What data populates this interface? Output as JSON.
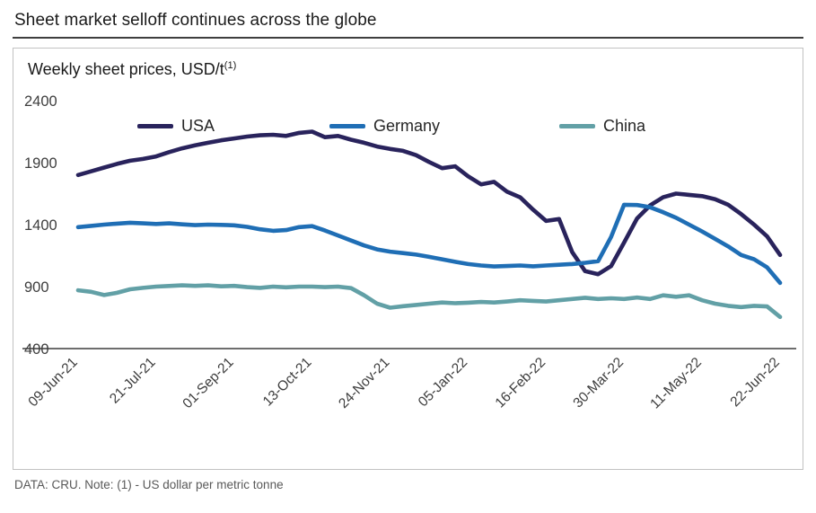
{
  "header": {
    "title": "Sheet market selloff continues across the globe"
  },
  "chart": {
    "subtitle": "Weekly sheet prices, USD/t",
    "subtitle_sup": "(1)"
  },
  "footer": {
    "note": "DATA: CRU.  Note: (1) - US dollar per metric tonne"
  },
  "chart_data": {
    "type": "line",
    "title": "Weekly sheet prices, USD/t(1)",
    "xlabel": "",
    "ylabel": "USD/t",
    "ylim": [
      400,
      2400
    ],
    "ytick_step": 500,
    "grid": false,
    "legend_position": "top-inside",
    "x_tick_labels": [
      "09-Jun-21",
      "21-Jul-21",
      "01-Sep-21",
      "13-Oct-21",
      "24-Nov-21",
      "05-Jan-22",
      "16-Feb-22",
      "30-Mar-22",
      "11-May-22",
      "22-Jun-22"
    ],
    "x_tick_indices": [
      0,
      6,
      12,
      18,
      24,
      30,
      36,
      42,
      48,
      54
    ],
    "x_unit": "weekly",
    "series": [
      {
        "name": "USA",
        "color": "#29235c",
        "values": [
          1800,
          1830,
          1860,
          1890,
          1915,
          1930,
          1950,
          1985,
          2015,
          2040,
          2060,
          2080,
          2095,
          2110,
          2120,
          2125,
          2115,
          2140,
          2150,
          2105,
          2115,
          2085,
          2060,
          2030,
          2010,
          1995,
          1960,
          1905,
          1855,
          1870,
          1790,
          1725,
          1745,
          1665,
          1620,
          1520,
          1430,
          1445,
          1180,
          1025,
          1000,
          1065,
          1255,
          1450,
          1555,
          1620,
          1650,
          1640,
          1630,
          1605,
          1560,
          1485,
          1400,
          1305,
          1155
        ]
      },
      {
        "name": "Germany",
        "color": "#1f6eb5",
        "values": [
          1380,
          1390,
          1400,
          1408,
          1415,
          1410,
          1405,
          1410,
          1402,
          1396,
          1400,
          1398,
          1394,
          1382,
          1362,
          1350,
          1356,
          1380,
          1388,
          1352,
          1312,
          1272,
          1232,
          1200,
          1182,
          1170,
          1158,
          1140,
          1120,
          1100,
          1082,
          1070,
          1062,
          1066,
          1070,
          1064,
          1070,
          1076,
          1082,
          1092,
          1105,
          1300,
          1560,
          1558,
          1540,
          1500,
          1455,
          1400,
          1345,
          1285,
          1225,
          1155,
          1120,
          1055,
          930
        ]
      },
      {
        "name": "China",
        "color": "#62a0a6",
        "values": [
          870,
          858,
          832,
          850,
          878,
          890,
          900,
          905,
          910,
          906,
          910,
          902,
          906,
          896,
          890,
          900,
          894,
          900,
          900,
          896,
          900,
          888,
          830,
          762,
          730,
          742,
          752,
          762,
          772,
          766,
          770,
          776,
          772,
          780,
          790,
          785,
          780,
          790,
          800,
          810,
          800,
          806,
          800,
          812,
          800,
          830,
          818,
          830,
          790,
          762,
          745,
          735,
          745,
          740,
          655
        ]
      }
    ]
  }
}
